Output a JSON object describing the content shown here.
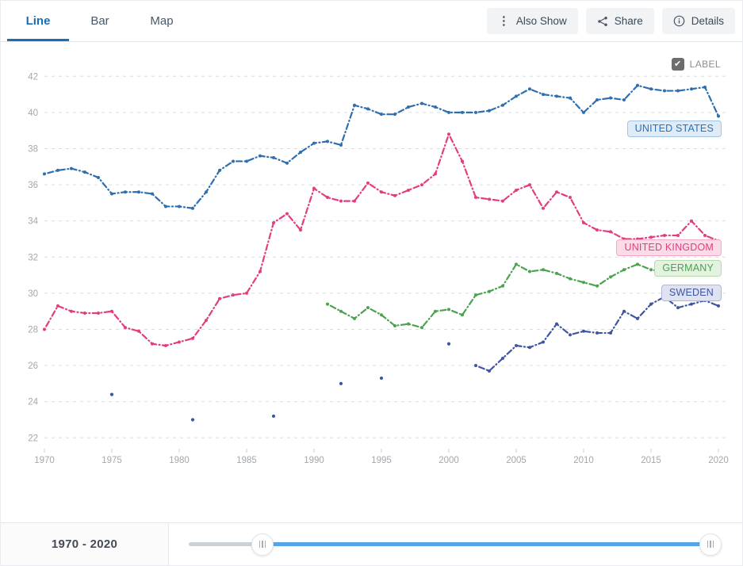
{
  "header": {
    "tabs": [
      {
        "label": "Line",
        "active": true
      },
      {
        "label": "Bar",
        "active": false
      },
      {
        "label": "Map",
        "active": false
      }
    ],
    "buttons": [
      {
        "label": "Also Show",
        "icon": "kebab-icon"
      },
      {
        "label": "Share",
        "icon": "share-icon"
      },
      {
        "label": "Details",
        "icon": "info-icon"
      }
    ]
  },
  "chart": {
    "label_toggle_text": "LABEL",
    "label_toggle_checked": true,
    "checkmark": "✔"
  },
  "chart_data": {
    "type": "line",
    "title": "",
    "xlabel": "",
    "ylabel": "",
    "x_ticks": [
      1970,
      1975,
      1980,
      1985,
      1990,
      1995,
      2000,
      2005,
      2010,
      2015,
      2020
    ],
    "y_ticks": [
      22,
      24,
      26,
      28,
      30,
      32,
      34,
      36,
      38,
      40,
      42
    ],
    "xlim": [
      1970,
      2020
    ],
    "ylim": [
      22,
      42
    ],
    "grid": "horizontal-dashed",
    "legend_position": "end-of-line-labels",
    "line_style": "dash-dot-with-point-markers",
    "axis_color": "#a3a8ad",
    "grid_color": "#dadde0",
    "series": [
      {
        "name": "UNITED STATES",
        "color": "#2e6fb0",
        "label_bg": "#dfecf7",
        "label_border": "#9fc4e6",
        "x_start": 1970,
        "values": [
          36.6,
          36.8,
          36.9,
          36.7,
          36.4,
          35.5,
          35.6,
          35.6,
          35.5,
          34.8,
          34.8,
          34.7,
          35.6,
          36.8,
          37.3,
          37.3,
          37.6,
          37.5,
          37.2,
          37.8,
          38.3,
          38.4,
          38.2,
          40.4,
          40.2,
          39.9,
          39.9,
          40.3,
          40.5,
          40.3,
          40.0,
          40.0,
          40.0,
          40.1,
          40.4,
          40.9,
          41.3,
          41.0,
          40.9,
          40.8,
          40.0,
          40.7,
          40.8,
          40.7,
          41.5,
          41.3,
          41.2,
          41.2,
          41.3,
          41.4,
          39.8
        ]
      },
      {
        "name": "UNITED KINGDOM",
        "color": "#e23d7f",
        "label_bg": "#fadbe7",
        "label_border": "#f3a9c4",
        "x_start": 1970,
        "values": [
          28.0,
          29.3,
          29.0,
          28.9,
          28.9,
          29.0,
          28.1,
          27.9,
          27.2,
          27.1,
          27.3,
          27.5,
          28.5,
          29.7,
          29.9,
          30.0,
          31.2,
          33.9,
          34.4,
          33.5,
          35.8,
          35.3,
          35.1,
          35.1,
          36.1,
          35.6,
          35.4,
          35.7,
          36.0,
          36.6,
          38.8,
          37.3,
          35.3,
          35.2,
          35.1,
          35.7,
          36.0,
          34.7,
          35.6,
          35.3,
          33.9,
          33.5,
          33.4,
          33.0,
          33.0,
          33.1,
          33.2,
          33.2,
          34.0,
          33.2,
          32.9
        ]
      },
      {
        "name": "GERMANY",
        "color": "#4aa34e",
        "label_bg": "#e4f3e0",
        "label_border": "#b5dcab",
        "x_start": 1991,
        "values": [
          29.4,
          29.0,
          28.6,
          29.2,
          28.8,
          28.2,
          28.3,
          28.1,
          29.0,
          29.1,
          28.8,
          29.9,
          30.1,
          30.4,
          31.6,
          31.2,
          31.3,
          31.1,
          30.8,
          30.6,
          30.4,
          30.9,
          31.3,
          31.6,
          31.3,
          31.2,
          31.2,
          31.3,
          31.5,
          31.7
        ]
      },
      {
        "name": "SWEDEN",
        "color": "#3f559f",
        "label_bg": "#dfe2f1",
        "label_border": "#aeb6dc",
        "scatter_x": [
          1975,
          1981,
          1987,
          1992,
          1995,
          2000
        ],
        "scatter_values": [
          24.4,
          23.0,
          23.2,
          25.0,
          25.3,
          27.2
        ],
        "x_start": 2002,
        "values": [
          26.0,
          25.7,
          26.4,
          27.1,
          27.0,
          27.3,
          28.3,
          27.7,
          27.9,
          27.8,
          27.8,
          29.0,
          28.6,
          29.4,
          29.8,
          29.2,
          29.4,
          29.6,
          29.3
        ]
      }
    ]
  },
  "timeline": {
    "range_label": "1970 - 2020",
    "start_year": "1970",
    "end_year": "2020"
  }
}
